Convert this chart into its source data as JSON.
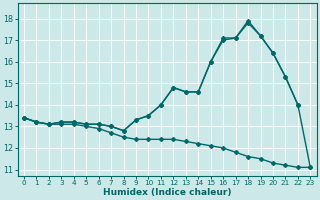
{
  "xlabel": "Humidex (Indice chaleur)",
  "background_color": "#cce8e8",
  "grid_color": "#ffffff",
  "line_color": "#006868",
  "xlim": [
    -0.5,
    23.5
  ],
  "ylim": [
    10.7,
    18.7
  ],
  "yticks": [
    11,
    12,
    13,
    14,
    15,
    16,
    17,
    18
  ],
  "xticks": [
    0,
    1,
    2,
    3,
    4,
    5,
    6,
    7,
    8,
    9,
    10,
    11,
    12,
    13,
    14,
    15,
    16,
    17,
    18,
    19,
    20,
    21,
    22,
    23
  ],
  "series1_x": [
    0,
    1,
    2,
    3,
    4,
    5,
    6,
    7,
    8,
    9,
    10,
    11,
    12,
    13,
    14,
    15,
    16,
    17,
    18,
    19,
    20,
    21,
    22,
    23
  ],
  "series1_y": [
    13.4,
    13.2,
    13.1,
    13.1,
    13.1,
    13.0,
    12.9,
    12.7,
    12.5,
    12.4,
    12.4,
    12.4,
    12.4,
    12.3,
    12.2,
    12.1,
    12.0,
    11.8,
    11.6,
    11.5,
    11.3,
    11.2,
    11.1,
    11.1
  ],
  "series2_x": [
    0,
    1,
    2,
    3,
    4,
    5,
    6,
    7,
    8,
    9,
    10,
    11,
    12,
    13,
    14,
    15,
    16,
    17,
    18,
    19,
    20,
    21,
    22
  ],
  "series2_y": [
    13.4,
    13.2,
    13.1,
    13.2,
    13.2,
    13.1,
    13.1,
    13.0,
    12.8,
    13.3,
    13.5,
    14.0,
    14.8,
    14.6,
    14.6,
    16.0,
    17.0,
    17.1,
    17.8,
    17.2,
    16.4,
    15.3,
    14.0
  ],
  "series3_x": [
    0,
    1,
    2,
    3,
    4,
    5,
    6,
    7,
    8,
    9,
    10,
    11,
    12,
    13,
    14,
    15,
    16,
    17,
    18,
    19,
    20,
    21,
    22,
    23
  ],
  "series3_y": [
    13.4,
    13.2,
    13.1,
    13.2,
    13.2,
    13.1,
    13.1,
    13.0,
    12.8,
    13.3,
    13.5,
    14.0,
    14.8,
    14.6,
    14.6,
    16.0,
    17.1,
    17.1,
    17.9,
    17.2,
    16.4,
    15.3,
    14.0,
    11.1
  ]
}
